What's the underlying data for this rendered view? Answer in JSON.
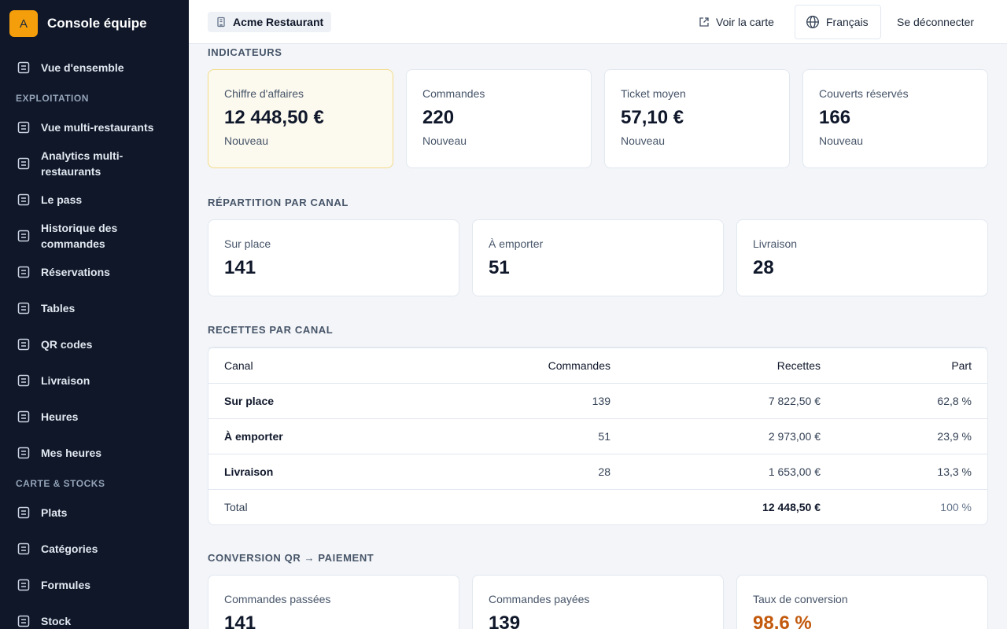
{
  "sidebar": {
    "badge": "A",
    "title": "Console équipe",
    "home": "Vue d'ensemble",
    "groups": [
      {
        "title": "EXPLOITATION",
        "items": [
          "Vue multi-restaurants",
          "Analytics multi-restaurants",
          "Le pass",
          "Historique des commandes",
          "Réservations",
          "Tables",
          "QR codes",
          "Livraison",
          "Heures",
          "Mes heures"
        ]
      },
      {
        "title": "CARTE & STOCKS",
        "items": [
          "Plats",
          "Catégories",
          "Formules",
          "Stock"
        ]
      }
    ]
  },
  "header": {
    "restaurant": "Acme Restaurant",
    "view_menu": "Voir la carte",
    "language": "Français",
    "logout": "Se déconnecter"
  },
  "indicators": {
    "title": "INDICATEURS",
    "cards": [
      {
        "label": "Chiffre d'affaires",
        "value": "12 448,50 €",
        "note": "Nouveau"
      },
      {
        "label": "Commandes",
        "value": "220",
        "note": "Nouveau"
      },
      {
        "label": "Ticket moyen",
        "value": "57,10 €",
        "note": "Nouveau"
      },
      {
        "label": "Couverts réservés",
        "value": "166",
        "note": "Nouveau"
      }
    ]
  },
  "channels": {
    "title": "RÉPARTITION PAR CANAL",
    "cards": [
      {
        "label": "Sur place",
        "value": "141"
      },
      {
        "label": "À emporter",
        "value": "51"
      },
      {
        "label": "Livraison",
        "value": "28"
      }
    ]
  },
  "revenue": {
    "title": "RECETTES PAR CANAL",
    "table": {
      "columns": [
        "Canal",
        "Commandes",
        "Recettes",
        "Part"
      ],
      "rows": [
        [
          "Sur place",
          "139",
          "7 822,50 €",
          "62,8 %"
        ],
        [
          "À emporter",
          "51",
          "2 973,00 €",
          "23,9 %"
        ],
        [
          "Livraison",
          "28",
          "1 653,00 €",
          "13,3 %"
        ]
      ],
      "total": {
        "label": "Total",
        "revenue": "12 448,50 €",
        "share": "100 %"
      }
    }
  },
  "conversion": {
    "title": "CONVERSION QR → PAIEMENT",
    "cards": [
      {
        "label": "Commandes passées",
        "value": "141"
      },
      {
        "label": "Commandes payées",
        "value": "139"
      },
      {
        "label": "Taux de conversion",
        "value": "98,6 %"
      }
    ]
  }
}
